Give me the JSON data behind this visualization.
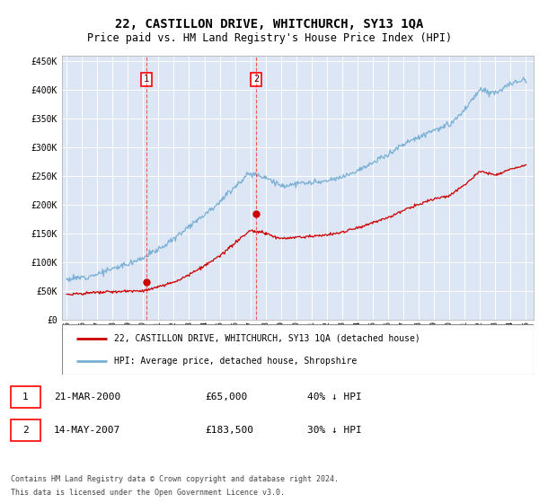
{
  "title": "22, CASTILLON DRIVE, WHITCHURCH, SY13 1QA",
  "subtitle": "Price paid vs. HM Land Registry's House Price Index (HPI)",
  "title_fontsize": 10,
  "subtitle_fontsize": 8.5,
  "plot_bg_color": "#dce6f5",
  "grid_color": "#ffffff",
  "ylim": [
    0,
    460000
  ],
  "yticks": [
    0,
    50000,
    100000,
    150000,
    200000,
    250000,
    300000,
    350000,
    400000,
    450000
  ],
  "legend_label_red": "22, CASTILLON DRIVE, WHITCHURCH, SY13 1QA (detached house)",
  "legend_label_blue": "HPI: Average price, detached house, Shropshire",
  "transaction1_date": "21-MAR-2000",
  "transaction1_price": "£65,000",
  "transaction1_hpi": "40% ↓ HPI",
  "transaction2_date": "14-MAY-2007",
  "transaction2_price": "£183,500",
  "transaction2_hpi": "30% ↓ HPI",
  "footnote1": "Contains HM Land Registry data © Crown copyright and database right 2024.",
  "footnote2": "This data is licensed under the Open Government Licence v3.0.",
  "red_color": "#cc0000",
  "blue_color": "#7ab0d4",
  "marker1_x": 2000.22,
  "marker1_y": 65000,
  "marker2_x": 2007.37,
  "marker2_y": 183500,
  "vline1_x": 2000.22,
  "vline2_x": 2007.37,
  "xlim_left": 1994.7,
  "xlim_right": 2025.5
}
